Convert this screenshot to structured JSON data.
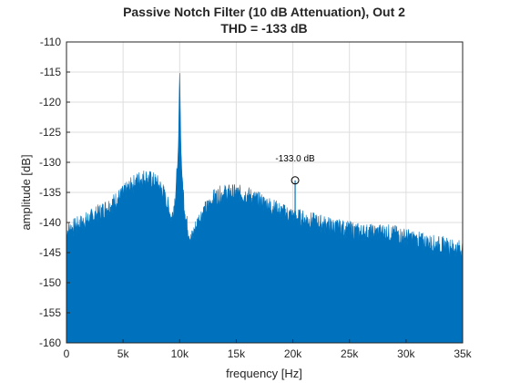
{
  "chart_data": {
    "type": "area",
    "title": "Passive Notch Filter (10 dB Attenuation), Out 2",
    "subtitle": "THD = -133 dB",
    "xlabel": "frequency [Hz]",
    "ylabel": "amplitude [dB]",
    "xlim": [
      0,
      35000
    ],
    "ylim": [
      -160,
      -110
    ],
    "x_ticks": [
      0,
      5000,
      10000,
      15000,
      20000,
      25000,
      30000,
      35000
    ],
    "x_tick_labels": [
      "0",
      "5k",
      "10k",
      "15k",
      "20k",
      "25k",
      "30k",
      "35k"
    ],
    "y_ticks": [
      -110,
      -115,
      -120,
      -125,
      -130,
      -135,
      -140,
      -145,
      -150,
      -155,
      -160
    ],
    "y_tick_labels": [
      "-110",
      "-115",
      "-120",
      "-125",
      "-130",
      "-135",
      "-140",
      "-145",
      "-150",
      "-155",
      "-160"
    ],
    "grid": true,
    "fill_baseline": -160,
    "series": [
      {
        "color": "#0072BD",
        "envelope": {
          "x": [
            0,
            500,
            1000,
            2000,
            3000,
            4000,
            5000,
            6000,
            6500,
            7000,
            7500,
            8000,
            8500,
            9000,
            9300,
            9600,
            9800,
            9900,
            9950,
            10000,
            10050,
            10100,
            10200,
            10400,
            10600,
            10800,
            11000,
            11300,
            11600,
            12000,
            12500,
            13000,
            13500,
            14000,
            15000,
            16000,
            17000,
            18000,
            19000,
            20000,
            21000,
            22000,
            23000,
            24000,
            25000,
            26000,
            27000,
            28000,
            29000,
            30000,
            31000,
            32000,
            33000,
            34000,
            35000
          ],
          "y": [
            -141.5,
            -141,
            -140.5,
            -139.5,
            -138.3,
            -137,
            -135.3,
            -133.5,
            -132.8,
            -132.6,
            -133,
            -133.5,
            -134.8,
            -137.5,
            -139.5,
            -136,
            -131,
            -127,
            -120,
            -115,
            -120,
            -127,
            -132,
            -137,
            -140,
            -141.5,
            -143,
            -141.5,
            -140,
            -138.5,
            -137.5,
            -136,
            -135.5,
            -135.2,
            -135.2,
            -135.5,
            -136.5,
            -137.3,
            -138.3,
            -139,
            -139.5,
            -140,
            -140.5,
            -141,
            -141.3,
            -141.7,
            -141.8,
            -141.7,
            -142,
            -142.5,
            -143,
            -143.5,
            -143.8,
            -144.2,
            -144.5
          ]
        },
        "harmonic_markers": [
          {
            "x": 20200,
            "y": -133.0,
            "label": "-133.0 dB"
          }
        ]
      }
    ]
  }
}
